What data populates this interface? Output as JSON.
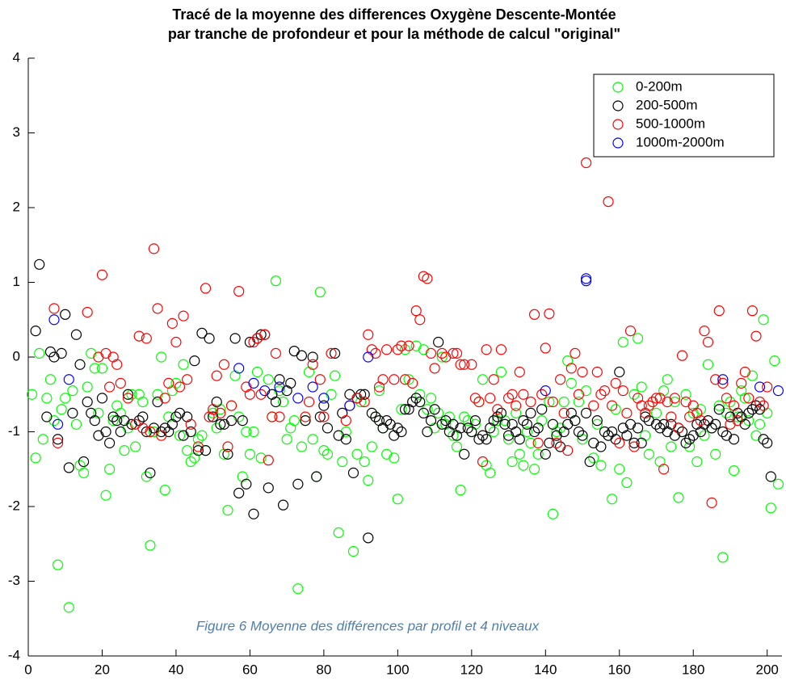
{
  "chart_data": {
    "type": "scatter",
    "title": [
      "Tracé de la moyenne des differences Oxygène Descente-Montée",
      "par tranche de profondeur et pour la méthode de calcul \"original\""
    ],
    "annotation": "Figure 6 Moyenne des différences par profil et 4 niveaux",
    "xlim": [
      0,
      204
    ],
    "ylim": [
      -4,
      4
    ],
    "xticks": [
      0,
      20,
      40,
      60,
      80,
      100,
      120,
      140,
      160,
      180,
      200
    ],
    "yticks": [
      -4,
      -3,
      -2,
      -1,
      0,
      1,
      2,
      3,
      4
    ],
    "grid": false,
    "legend": "upper right",
    "series": [
      {
        "name": "0-200m",
        "color": "#00ff00",
        "x": [
          1,
          2,
          3,
          4,
          5,
          6,
          7,
          8,
          9,
          10,
          11,
          12,
          13,
          14,
          15,
          16,
          17,
          18,
          19,
          20,
          21,
          22,
          23,
          24,
          25,
          26,
          27,
          28,
          29,
          30,
          31,
          32,
          33,
          34,
          35,
          36,
          37,
          38,
          39,
          40,
          41,
          42,
          43,
          44,
          45,
          46,
          47,
          48,
          50,
          51,
          52,
          53,
          54,
          55,
          56,
          57,
          58,
          59,
          60,
          61,
          62,
          63,
          65,
          66,
          67,
          68,
          69,
          70,
          71,
          72,
          73,
          74,
          75,
          76,
          77,
          78,
          79,
          80,
          81,
          82,
          83,
          84,
          85,
          86,
          88,
          89,
          90,
          91,
          92,
          93,
          94,
          95,
          96,
          97,
          99,
          100,
          101,
          102,
          103,
          105,
          106,
          107,
          108,
          109,
          110,
          111,
          112,
          113,
          114,
          115,
          116,
          117,
          118,
          119,
          120,
          121,
          122,
          123,
          124,
          125,
          126,
          127,
          128,
          129,
          130,
          131,
          132,
          133,
          134,
          135,
          136,
          137,
          138,
          139,
          141,
          142,
          143,
          144,
          145,
          146,
          147,
          148,
          149,
          150,
          151,
          153,
          154,
          155,
          157,
          158,
          159,
          160,
          161,
          162,
          164,
          165,
          166,
          167,
          168,
          169,
          170,
          171,
          172,
          173,
          174,
          175,
          176,
          177,
          178,
          179,
          180,
          181,
          182,
          183,
          184,
          185,
          186,
          187,
          188,
          189,
          190,
          191,
          192,
          193,
          194,
          195,
          196,
          197,
          198,
          199,
          200,
          201,
          202,
          203
        ],
        "values": [
          -0.5,
          -1.35,
          0.05,
          -1.1,
          -0.55,
          -0.3,
          -0.85,
          -2.78,
          -0.7,
          -0.55,
          -3.35,
          -0.45,
          -0.9,
          -1.45,
          -1.55,
          -0.4,
          0.05,
          -0.15,
          -0.75,
          -0.15,
          -1.85,
          -1.5,
          -0.85,
          -0.65,
          -0.75,
          -1.25,
          -0.95,
          -0.5,
          -1.2,
          -0.5,
          -0.6,
          -1.6,
          -2.52,
          -1.0,
          -0.5,
          0.0,
          -1.78,
          -0.8,
          -0.45,
          -0.35,
          -1.05,
          -0.1,
          -1.25,
          -1.4,
          -1.35,
          -1.1,
          -1.05,
          -1.25,
          -0.75,
          -0.95,
          -0.7,
          -1.3,
          -2.05,
          -0.65,
          -0.25,
          -0.8,
          -1.6,
          -1.0,
          -1.3,
          -1.0,
          -0.2,
          -1.35,
          -0.3,
          -0.8,
          1.02,
          -0.45,
          -0.6,
          -1.1,
          -0.95,
          -0.85,
          -3.1,
          -1.2,
          -0.85,
          -0.2,
          -1.1,
          -1.6,
          0.87,
          -1.25,
          -1.3,
          -0.5,
          -0.25,
          -2.35,
          -1.4,
          -1.0,
          -2.6,
          -1.3,
          -0.6,
          -1.4,
          -1.65,
          -1.2,
          -0.8,
          -0.45,
          -0.95,
          -1.3,
          -1.35,
          -1.9,
          -0.7,
          0.1,
          -0.3,
          0.15,
          -0.5,
          0.1,
          -0.7,
          -0.55,
          -0.95,
          -0.75,
          0.0,
          -0.9,
          -0.8,
          -1.05,
          -1.2,
          -1.78,
          -0.8,
          -0.85,
          -1.0,
          -0.9,
          -0.6,
          -0.3,
          -1.45,
          -1.55,
          -1.0,
          -0.85,
          -0.2,
          -0.85,
          -1.1,
          -1.4,
          -0.75,
          -1.3,
          -1.45,
          -1.0,
          -1.15,
          -1.5,
          -1.3,
          -0.85,
          -0.6,
          -2.1,
          -1.0,
          -0.95,
          -0.6,
          -0.05,
          -0.35,
          -0.85,
          -0.6,
          -1.1,
          -0.45,
          -1.35,
          -0.9,
          -1.45,
          -1.05,
          -1.9,
          -0.7,
          -1.5,
          0.2,
          -1.68,
          -0.5,
          0.25,
          -0.4,
          -1.05,
          -1.3,
          -0.6,
          -0.75,
          -1.4,
          -0.45,
          -0.3,
          -1.2,
          -0.6,
          -1.88,
          -1.0,
          -0.5,
          -1.2,
          -0.75,
          -1.4,
          -0.7,
          -1.05,
          -0.1,
          -0.95,
          -1.3,
          -0.65,
          -2.68,
          -0.75,
          -0.6,
          -1.52,
          -0.8,
          -0.45,
          -0.55,
          -0.85,
          -0.25,
          -1.05,
          -0.9,
          0.5,
          -0.75,
          -2.02,
          -0.05,
          -1.7
        ]
      },
      {
        "name": "200-500m",
        "color": "#000000",
        "x": [
          2,
          3,
          5,
          6,
          7,
          8,
          9,
          10,
          11,
          12,
          13,
          14,
          15,
          16,
          17,
          18,
          19,
          20,
          21,
          22,
          23,
          24,
          25,
          26,
          27,
          28,
          30,
          31,
          32,
          33,
          34,
          35,
          36,
          37,
          38,
          39,
          40,
          41,
          42,
          43,
          44,
          45,
          46,
          47,
          48,
          49,
          50,
          51,
          52,
          53,
          54,
          55,
          56,
          57,
          58,
          59,
          60,
          61,
          62,
          63,
          64,
          65,
          66,
          67,
          68,
          69,
          70,
          71,
          72,
          73,
          74,
          75,
          77,
          78,
          79,
          80,
          81,
          83,
          84,
          85,
          86,
          87,
          88,
          89,
          90,
          91,
          92,
          93,
          94,
          95,
          96,
          97,
          98,
          99,
          100,
          101,
          102,
          103,
          104,
          105,
          106,
          107,
          108,
          109,
          110,
          111,
          112,
          113,
          114,
          115,
          116,
          117,
          118,
          119,
          120,
          121,
          122,
          123,
          124,
          125,
          126,
          127,
          128,
          129,
          130,
          131,
          132,
          133,
          134,
          135,
          136,
          137,
          138,
          139,
          140,
          141,
          142,
          143,
          144,
          145,
          146,
          147,
          148,
          149,
          150,
          151,
          152,
          153,
          154,
          155,
          156,
          157,
          158,
          159,
          160,
          161,
          162,
          163,
          164,
          165,
          166,
          167,
          168,
          170,
          171,
          172,
          173,
          174,
          175,
          176,
          177,
          178,
          179,
          180,
          181,
          182,
          183,
          184,
          185,
          186,
          187,
          188,
          189,
          190,
          191,
          192,
          193,
          194,
          195,
          196,
          197,
          198,
          199,
          200,
          201
        ],
        "values": [
          0.35,
          1.24,
          -0.8,
          0.07,
          0.0,
          -1.1,
          0.05,
          0.57,
          -1.48,
          -0.75,
          0.3,
          -0.1,
          -1.4,
          -0.6,
          -0.75,
          -0.85,
          -1.05,
          -0.55,
          -1.0,
          -1.15,
          -0.8,
          -0.85,
          -1.0,
          -0.85,
          -0.5,
          -0.9,
          -0.85,
          -0.8,
          -1.0,
          -1.55,
          -0.95,
          -0.6,
          -1.0,
          -0.95,
          -1.0,
          -0.9,
          -0.8,
          -0.75,
          -1.05,
          -0.8,
          -1.0,
          -0.05,
          -1.25,
          0.32,
          -1.25,
          0.25,
          -0.8,
          -0.6,
          -0.9,
          -0.9,
          -1.3,
          -0.85,
          0.25,
          -1.82,
          -0.85,
          -1.7,
          0.2,
          -2.1,
          0.25,
          0.3,
          0.3,
          -1.75,
          -0.5,
          -0.6,
          -0.3,
          -1.98,
          -0.45,
          -0.35,
          0.08,
          -1.7,
          0.02,
          -0.85,
          0.0,
          -1.6,
          -0.8,
          -0.65,
          -0.95,
          0.05,
          -1.05,
          -0.75,
          -1.1,
          -0.5,
          -1.55,
          -0.55,
          -0.5,
          -0.5,
          -2.42,
          -0.75,
          -0.8,
          -0.85,
          -0.95,
          -0.85,
          -0.9,
          -1.05,
          -0.95,
          -1.0,
          -0.7,
          -0.7,
          -0.6,
          -0.55,
          -0.6,
          -0.75,
          -1.0,
          -0.85,
          -0.7,
          0.2,
          -0.9,
          -0.85,
          -1.0,
          -0.9,
          -1.05,
          -0.95,
          -1.3,
          -0.95,
          -1.0,
          -0.85,
          -1.1,
          -1.05,
          -1.1,
          -0.95,
          -0.85,
          -0.8,
          -0.75,
          -0.9,
          -1.05,
          -0.9,
          -1.0,
          -1.1,
          -0.85,
          -0.9,
          -0.75,
          -1.0,
          -0.95,
          -0.7,
          -1.3,
          -1.15,
          -0.9,
          -1.05,
          -1.2,
          -1.0,
          -0.9,
          -0.75,
          -0.85,
          -1.0,
          -1.05,
          -0.75,
          -1.4,
          -1.15,
          -0.85,
          -1.2,
          -1.0,
          -1.05,
          -1.0,
          -1.1,
          -0.2,
          -0.95,
          -1.05,
          -0.9,
          -1.15,
          -0.95,
          -1.15,
          -0.8,
          -0.85,
          -0.9,
          -0.95,
          -0.9,
          -1.0,
          -0.9,
          -1.05,
          -0.95,
          -1.0,
          -1.15,
          -1.1,
          -1.05,
          -0.9,
          -1.0,
          -0.9,
          -0.85,
          -0.95,
          -0.9,
          -0.7,
          -1.0,
          -1.05,
          -0.8,
          -1.1,
          -0.75,
          -0.8,
          -0.9,
          -0.75,
          -0.7,
          -0.65,
          -0.7,
          -1.1,
          -1.15,
          -1.6
        ]
      },
      {
        "name": "500-1000m",
        "color": "#ff0000",
        "x": [
          7,
          8,
          16,
          19,
          20,
          21,
          22,
          23,
          24,
          25,
          27,
          29,
          30,
          31,
          32,
          33,
          34,
          35,
          36,
          37,
          38,
          39,
          40,
          41,
          42,
          43,
          44,
          46,
          48,
          49,
          50,
          51,
          52,
          53,
          54,
          55,
          57,
          59,
          60,
          61,
          62,
          63,
          64,
          65,
          66,
          67,
          68,
          75,
          76,
          77,
          79,
          80,
          82,
          86,
          87,
          89,
          91,
          92,
          93,
          94,
          95,
          96,
          97,
          99,
          100,
          101,
          102,
          103,
          104,
          105,
          106,
          107,
          108,
          109,
          110,
          112,
          113,
          115,
          116,
          117,
          118,
          120,
          121,
          122,
          123,
          124,
          125,
          126,
          127,
          128,
          130,
          131,
          132,
          133,
          134,
          136,
          137,
          138,
          139,
          140,
          141,
          142,
          143,
          144,
          145,
          146,
          147,
          148,
          149,
          150,
          151,
          153,
          154,
          155,
          156,
          157,
          158,
          159,
          160,
          161,
          162,
          163,
          164,
          165,
          166,
          167,
          168,
          169,
          170,
          171,
          172,
          173,
          174,
          175,
          176,
          177,
          178,
          179,
          180,
          181,
          182,
          183,
          184,
          185,
          186,
          187,
          188,
          189,
          190,
          191,
          192,
          193,
          194,
          195,
          196,
          197,
          198,
          199,
          200
        ],
        "values": [
          0.65,
          -1.15,
          0.6,
          0.0,
          1.1,
          0.05,
          -0.4,
          0.0,
          -0.1,
          -0.35,
          -0.55,
          -0.9,
          0.28,
          -0.95,
          0.25,
          -1.0,
          1.45,
          0.65,
          -1.05,
          -0.55,
          -0.35,
          0.45,
          0.2,
          -0.4,
          0.55,
          -0.3,
          -0.9,
          -1.2,
          0.92,
          -0.8,
          -0.7,
          -0.25,
          -0.75,
          -0.1,
          -1.2,
          -0.65,
          0.88,
          -0.4,
          -0.5,
          0.2,
          0.25,
          -0.5,
          0.3,
          -1.38,
          -0.8,
          0.05,
          -0.8,
          -0.8,
          -0.6,
          -0.1,
          -0.3,
          -0.8,
          0.05,
          -0.85,
          -0.65,
          -0.55,
          -0.6,
          0.3,
          0.1,
          0.05,
          -0.4,
          -0.3,
          0.1,
          -0.3,
          0.1,
          0.15,
          -0.3,
          0.15,
          -0.35,
          0.62,
          0.5,
          1.08,
          1.05,
          0.05,
          -0.15,
          0.05,
          0.0,
          0.05,
          0.05,
          -0.1,
          -0.1,
          -0.1,
          -0.55,
          -0.6,
          -1.4,
          0.1,
          -0.55,
          -0.3,
          -0.7,
          0.1,
          -0.55,
          -0.5,
          -0.65,
          -0.2,
          -0.5,
          -0.6,
          0.57,
          -1.15,
          -0.5,
          0.12,
          0.58,
          -0.6,
          -1.15,
          -0.3,
          -0.75,
          -1.25,
          -0.15,
          0.05,
          -0.5,
          -0.2,
          2.6,
          -0.65,
          -0.2,
          -0.5,
          -0.45,
          2.08,
          -0.65,
          -0.35,
          -1.15,
          -0.45,
          -0.75,
          0.35,
          -1.2,
          -0.55,
          -0.65,
          -0.75,
          -0.65,
          -0.6,
          -0.55,
          -0.55,
          -1.5,
          -0.6,
          -0.8,
          -0.55,
          -0.95,
          0.02,
          -0.6,
          -0.8,
          -0.65,
          -0.75,
          -0.85,
          0.35,
          0.2,
          -1.95,
          -0.3,
          0.62,
          -0.35,
          -0.55,
          -0.9,
          -0.65,
          -0.85,
          -0.35,
          -0.2,
          -0.55,
          0.62,
          0.28,
          -0.6,
          -0.65,
          -0.4
        ]
      },
      {
        "name": "1000m-2000m",
        "color": "#0000ff",
        "x": [
          7,
          8,
          11,
          57,
          61,
          64,
          68,
          73,
          77,
          80,
          87,
          92,
          140,
          151,
          151,
          188,
          198,
          203
        ],
        "values": [
          0.5,
          -0.9,
          -0.3,
          -0.15,
          -0.35,
          -0.45,
          -0.4,
          -0.55,
          -0.4,
          -0.55,
          -0.65,
          0.0,
          -0.45,
          1.05,
          1.02,
          -0.3,
          -0.4,
          -0.45
        ]
      }
    ]
  }
}
